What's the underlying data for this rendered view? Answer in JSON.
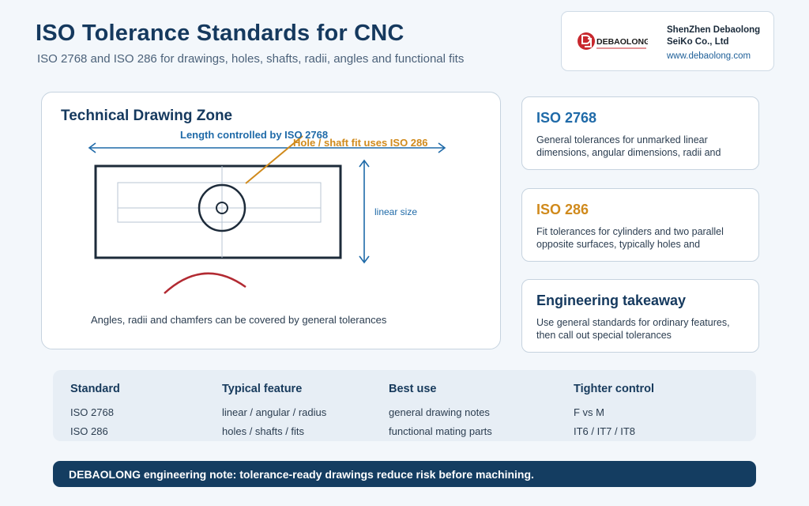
{
  "header": {
    "title": "ISO Tolerance Standards for CNC",
    "subtitle": "ISO 2768 and ISO 286 for drawings, holes, shafts, radii, angles and functional fits"
  },
  "brand": {
    "logo_text": "DEBAOLONG",
    "company_line1": "ShenZhen Debaolong",
    "company_line2": "SeiKo Co., Ltd",
    "url": "www.debaolong.com",
    "accent": "#c8282e"
  },
  "drawing_zone": {
    "title": "Technical Drawing Zone",
    "length_label": "Length controlled by ISO 2768",
    "fit_label": "Hole / shaft fit uses ISO 286",
    "linear_label": "linear size",
    "footnote": "Angles, radii and chamfers can be covered by general tolerances",
    "colors": {
      "dimension": "#1f6aa8",
      "fit": "#d08a1c",
      "radius": "#b22a32",
      "part": "#1d2b3a",
      "inner": "#b9c6d3"
    }
  },
  "cards": [
    {
      "title": "ISO 2768",
      "title_color": "#1f6aa8",
      "body": "General tolerances for unmarked linear dimensions, angular dimensions, radii and"
    },
    {
      "title": "ISO 286",
      "title_color": "#d08a1c",
      "body": "Fit tolerances for cylinders and two parallel opposite surfaces, typically holes and"
    },
    {
      "title": "Engineering takeaway",
      "title_color": "#15395e",
      "body": "Use general standards for ordinary features, then call out special tolerances"
    }
  ],
  "table": {
    "headers": [
      "Standard",
      "Typical feature",
      "Best use",
      "Tighter control"
    ],
    "rows": [
      [
        "ISO 2768",
        "linear / angular / radius",
        "general drawing notes",
        "F vs M"
      ],
      [
        "ISO 286",
        "holes / shafts / fits",
        "functional mating parts",
        "IT6 / IT7 / IT8"
      ]
    ]
  },
  "note": "DEBAOLONG engineering note: tolerance-ready drawings reduce risk before machining."
}
